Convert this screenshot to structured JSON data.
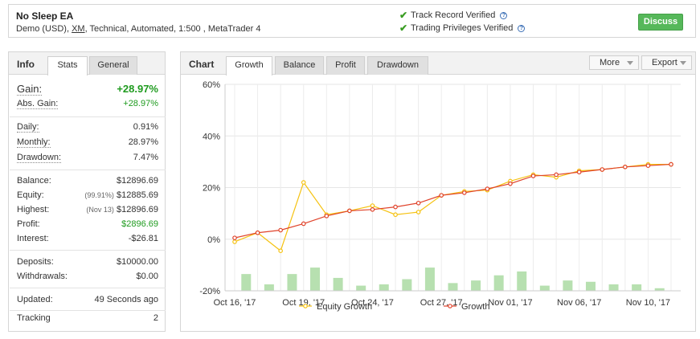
{
  "header": {
    "title": "No Sleep EA",
    "account_prefix": "Demo (USD), ",
    "broker": "XM",
    "account_suffix": ", Technical, Automated, 1:500 , MetaTrader 4",
    "track_record": "Track Record Verified",
    "trading_privileges": "Trading Privileges Verified",
    "discuss_label": "Discuss"
  },
  "info": {
    "title": "Info",
    "tabs": [
      "Stats",
      "General"
    ],
    "gain_label": "Gain:",
    "gain_value": "+28.97%",
    "abs_gain_label": "Abs. Gain:",
    "abs_gain_value": "+28.97%",
    "daily_label": "Daily:",
    "daily_value": "0.91%",
    "monthly_label": "Monthly:",
    "monthly_value": "28.97%",
    "drawdown_label": "Drawdown:",
    "drawdown_value": "7.47%",
    "balance_label": "Balance:",
    "balance_value": "$12896.69",
    "equity_label": "Equity:",
    "equity_pct": "(99.91%)",
    "equity_value": "$12885.69",
    "highest_label": "Highest:",
    "highest_date": "(Nov 13)",
    "highest_value": "$12896.69",
    "profit_label": "Profit:",
    "profit_value": "$2896.69",
    "interest_label": "Interest:",
    "interest_value": "-$26.81",
    "deposits_label": "Deposits:",
    "deposits_value": "$10000.00",
    "withdrawals_label": "Withdrawals:",
    "withdrawals_value": "$0.00",
    "updated_label": "Updated:",
    "updated_value": "49 Seconds ago",
    "tracking_label": "Tracking",
    "tracking_value": "2"
  },
  "chart_panel": {
    "title": "Chart",
    "tabs": [
      "Growth",
      "Balance",
      "Profit",
      "Drawdown"
    ],
    "more_label": "More",
    "export_label": "Export"
  },
  "colors": {
    "equity": "#f5c211",
    "growth": "#e0432b",
    "bars": "#b7e0b0",
    "accent_green": "#56b85a"
  },
  "chart_data": {
    "type": "line",
    "title": "",
    "xlabel": "",
    "ylabel": "",
    "ylim": [
      -20,
      60
    ],
    "yticks": [
      -20,
      0,
      20,
      40,
      60
    ],
    "ytick_labels": [
      "-20%",
      "0%",
      "20%",
      "40%",
      "60%"
    ],
    "xtick_labels": [
      "Oct 16, '17",
      "Oct 19, '17",
      "Oct 24, '17",
      "Oct 27, '17",
      "Nov 01, '17",
      "Nov 06, '17",
      "Nov 10, '17"
    ],
    "xtick_index": [
      0,
      3,
      6,
      9,
      12,
      15,
      18
    ],
    "grid": true,
    "legend_position": "bottom",
    "series": [
      {
        "name": "Equity Growth",
        "type": "line",
        "values": [
          -1,
          2.5,
          -4.5,
          22,
          9.5,
          11,
          13,
          9.5,
          10.5,
          17,
          18.5,
          19,
          22.5,
          25,
          24,
          26.5,
          27,
          28,
          29,
          29
        ]
      },
      {
        "name": "Growth",
        "type": "line",
        "values": [
          0.5,
          2.5,
          3.5,
          6,
          9,
          11,
          11.5,
          12.5,
          14,
          17,
          18,
          19.5,
          21.5,
          24.5,
          25,
          26,
          27,
          28,
          28.5,
          29
        ]
      },
      {
        "name": "",
        "type": "bar",
        "values": [
          -13.5,
          -17.5,
          -13.5,
          -11,
          -15,
          -18,
          -17.5,
          -15.5,
          -11,
          -17,
          -16,
          -14,
          -12.5,
          -18,
          -16,
          -16.5,
          -17.5,
          -17.5,
          -19
        ]
      }
    ]
  }
}
